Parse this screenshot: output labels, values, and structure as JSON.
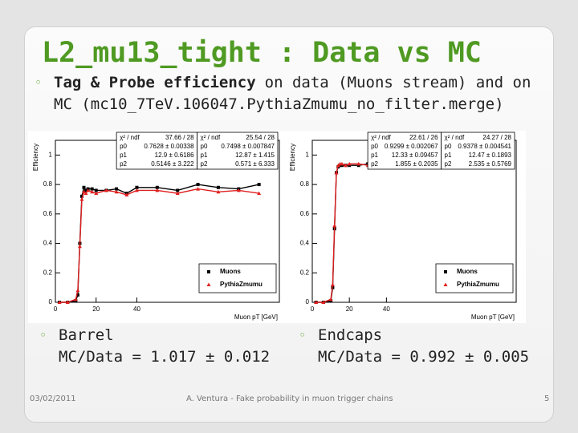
{
  "title": "L2_mu13_tight : Data vs MC",
  "intro": {
    "bold": "Tag & Probe efficiency",
    "rest": "on data (Muons stream) and on MC (mc10_7TeV.106047.PythiaZmumu_no_filter.merge)"
  },
  "results": [
    {
      "label": "Barrel",
      "ratio": "MC/Data = 1.017 ± 0.012"
    },
    {
      "label": "Endcaps",
      "ratio": "MC/Data = 0.992 ± 0.005"
    }
  ],
  "footer": {
    "date": "03/02/2011",
    "author": "A. Ventura - Fake probability in muon trigger chains",
    "page": "5"
  },
  "chart_data": [
    {
      "type": "line",
      "xlabel": "Muon pT [GeV]",
      "ylabel": "Efficiency",
      "x": [
        2,
        6,
        10,
        11,
        12,
        13,
        14,
        15,
        16,
        18,
        20,
        25,
        30,
        35,
        40,
        50,
        60,
        70,
        80,
        90,
        100
      ],
      "series": [
        {
          "name": "Muons",
          "color": "#000000",
          "values": [
            0,
            0,
            0.01,
            0.05,
            0.4,
            0.72,
            0.78,
            0.76,
            0.77,
            0.77,
            0.76,
            0.76,
            0.77,
            0.74,
            0.78,
            0.78,
            0.76,
            0.8,
            0.78,
            0.77,
            0.8
          ]
        },
        {
          "name": "PythiaZmumu",
          "color": "#e02020",
          "values": [
            0,
            0,
            0.02,
            0.08,
            0.38,
            0.7,
            0.75,
            0.74,
            0.76,
            0.75,
            0.74,
            0.76,
            0.75,
            0.73,
            0.76,
            0.76,
            0.74,
            0.77,
            0.75,
            0.76,
            0.74
          ]
        }
      ],
      "xlim": [
        0,
        110
      ],
      "ylim": [
        0,
        1.1
      ],
      "xticks": [
        0,
        20,
        40
      ],
      "yticks": [
        0,
        {
          "value": 0.2,
          "label": "0.2"
        },
        {
          "value": 0.4,
          "label": "0.4"
        },
        {
          "value": 0.6,
          "label": "0.6"
        },
        {
          "value": 0.8,
          "label": "0.8"
        },
        1
      ],
      "fit_boxes": [
        [
          [
            "χ² / ndf",
            "37.66 / 28"
          ],
          [
            "p0",
            "0.7628 ± 0.00338"
          ],
          [
            "p1",
            "12.9 ± 0.6186"
          ],
          [
            "p2",
            "0.5146 ± 3.222"
          ]
        ],
        [
          [
            "χ² / ndf",
            "25.54 / 28"
          ],
          [
            "p0",
            "0.7498 ± 0.007847"
          ],
          [
            "p1",
            "12.87 ± 1.415"
          ],
          [
            "p2",
            "0.571 ± 6.333"
          ]
        ]
      ]
    },
    {
      "type": "line",
      "xlabel": "Muon pT [GeV]",
      "ylabel": "Efficiency",
      "x": [
        2,
        6,
        10,
        11,
        12,
        13,
        14,
        15,
        16,
        18,
        20,
        25,
        30,
        35,
        40,
        50,
        60,
        70,
        80,
        90,
        100
      ],
      "series": [
        {
          "name": "Muons",
          "color": "#000000",
          "values": [
            0,
            0,
            0.01,
            0.1,
            0.5,
            0.88,
            0.92,
            0.93,
            0.93,
            0.93,
            0.93,
            0.93,
            0.94,
            0.93,
            0.93,
            0.93,
            0.92,
            0.93,
            0.94,
            0.93,
            0.93
          ]
        },
        {
          "name": "PythiaZmumu",
          "color": "#e02020",
          "values": [
            0,
            0,
            0.02,
            0.12,
            0.52,
            0.88,
            0.93,
            0.94,
            0.94,
            0.93,
            0.94,
            0.94,
            0.93,
            0.94,
            0.94,
            0.95,
            0.93,
            0.94,
            0.92,
            0.94,
            0.93
          ]
        }
      ],
      "xlim": [
        0,
        110
      ],
      "ylim": [
        0,
        1.1
      ],
      "xticks": [
        0,
        20,
        40
      ],
      "yticks": [
        0,
        {
          "value": 0.2,
          "label": "0.2"
        },
        {
          "value": 0.4,
          "label": "0.4"
        },
        {
          "value": 0.6,
          "label": "0.6"
        },
        {
          "value": 0.8,
          "label": "0.8"
        },
        1
      ],
      "fit_boxes": [
        [
          [
            "χ² / ndf",
            "22.61 / 26"
          ],
          [
            "p0",
            "0.9299 ± 0.002067"
          ],
          [
            "p1",
            "12.33 ± 0.09457"
          ],
          [
            "p2",
            "1.855 ± 0.2035"
          ]
        ],
        [
          [
            "χ² / ndf",
            "24.27 / 28"
          ],
          [
            "p0",
            "0.9378 ± 0.004541"
          ],
          [
            "p1",
            "12.47 ± 0.1893"
          ],
          [
            "p2",
            "2.535 ± 0.5769"
          ]
        ]
      ]
    }
  ]
}
